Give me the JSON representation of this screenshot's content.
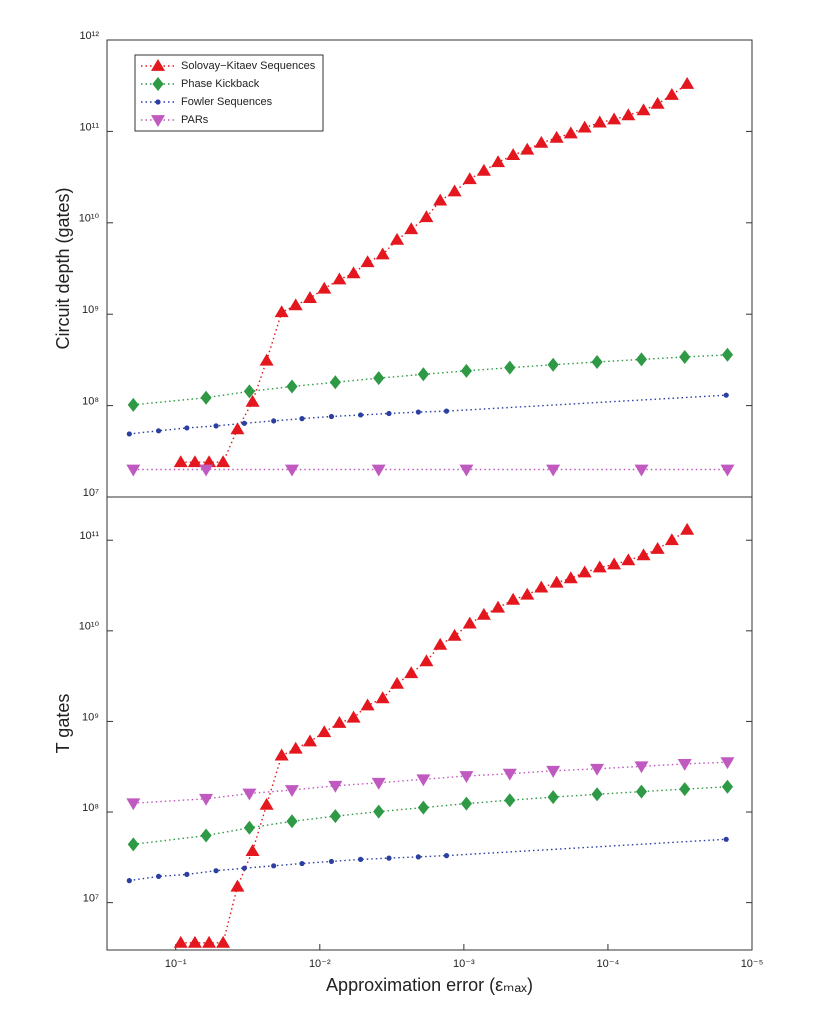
{
  "chart_data": [
    {
      "type": "line",
      "ylabel": "Circuit depth (gates)",
      "log_x": true,
      "log_y": true,
      "legend": "upper left",
      "xlim": [
        0.3,
        1e-05
      ],
      "ylim": [
        10000000,
        1000000000000
      ],
      "yticks": [
        {
          "value": 10000000,
          "label": "10⁷"
        },
        {
          "value": 100000000,
          "label": "10⁸"
        },
        {
          "value": 1000000000,
          "label": "10⁹"
        },
        {
          "value": 10000000000,
          "label": "10¹⁰"
        },
        {
          "value": 100000000000,
          "label": "10¹¹"
        },
        {
          "value": 1000000000000,
          "label": "10¹²"
        }
      ],
      "series": [
        {
          "name": "Solovay−Kitaev Sequences",
          "color": "#e3171d",
          "marker": "^",
          "x": [
            0.0923,
            0.0736,
            0.0587,
            0.0469,
            0.0373,
            0.0293,
            0.0234,
            0.0184,
            0.0147,
            0.0117,
            0.00931,
            0.00731,
            0.00583,
            0.00466,
            0.00366,
            0.00291,
            0.00232,
            0.00182,
            0.00146,
            0.00116,
            0.00091,
            0.000726,
            0.000579,
            0.000455,
            0.000363,
            0.00029,
            0.000227,
            0.000181,
            0.000145,
            0.000114,
            9.06e-05,
            7.22e-05,
            5.66e-05,
            4.52e-05,
            3.6e-05,
            2.82e-05
          ],
          "values": [
            24000000,
            24000000,
            24000000,
            24000000,
            55000000,
            110000000,
            310000000,
            1050000000,
            1250000000,
            1500000000,
            1900000000,
            2400000000,
            2800000000,
            3700000000,
            4500000000,
            6500000000,
            8500000000,
            11500000000,
            17500000000,
            22000000000,
            30000000000,
            37000000000,
            46000000000,
            55000000000,
            63000000000,
            75000000000,
            85000000000,
            95000000000,
            110000000000,
            125000000000,
            135000000000,
            150000000000,
            170000000000,
            200000000000,
            250000000000,
            330000000000
          ]
        },
        {
          "name": "Phase Kickback",
          "color": "#2e9a45",
          "marker": "D",
          "x": [
            0.197,
            0.0616,
            0.0308,
            0.0156,
            0.0078,
            0.0039,
            0.00191,
            0.00096,
            0.00048,
            0.00024,
            0.000119,
            5.85e-05,
            2.93e-05,
            1.48e-05
          ],
          "values": [
            102000000,
            122000000,
            143000000,
            162000000,
            180000000,
            200000000,
            220000000,
            240000000,
            260000000,
            280000000,
            300000000,
            320000000,
            340000000,
            360000000
          ]
        },
        {
          "name": "Fowler Sequences",
          "color": "#2a3fa0",
          "marker": "o",
          "x": [
            0.21,
            0.1315,
            0.0837,
            0.0525,
            0.0334,
            0.0209,
            0.0133,
            0.0083,
            0.00521,
            0.00331,
            0.00207,
            0.00132,
            1.51e-05
          ],
          "values": [
            49000000,
            53000000,
            57000000,
            60000000,
            64000000,
            68000000,
            72000000,
            76000000,
            79000000,
            82000000,
            85000000,
            87000000,
            130000000
          ]
        },
        {
          "name": "PARs",
          "color": "#c05ac0",
          "marker": "v",
          "x": [
            0.197,
            0.0616,
            0.0156,
            0.0039,
            0.00096,
            0.00024,
            5.85e-05,
            1.48e-05
          ],
          "values": [
            20000000,
            20000000,
            20000000,
            20000000,
            20000000,
            20000000,
            20000000,
            20000000
          ]
        }
      ]
    },
    {
      "type": "line",
      "ylabel": "T gates",
      "xlabel": "Approximation error (εₘₐₓ)",
      "log_x": true,
      "log_y": true,
      "xlim": [
        0.3,
        1e-05
      ],
      "ylim": [
        3000000,
        300000000000
      ],
      "xticks": [
        {
          "value": 0.1,
          "label": "10⁻¹"
        },
        {
          "value": 0.01,
          "label": "10⁻²"
        },
        {
          "value": 0.001,
          "label": "10⁻³"
        },
        {
          "value": 0.0001,
          "label": "10⁻⁴"
        },
        {
          "value": 1e-05,
          "label": "10⁻⁵"
        }
      ],
      "yticks": [
        {
          "value": 10000000,
          "label": "10⁷"
        },
        {
          "value": 100000000,
          "label": "10⁸"
        },
        {
          "value": 1000000000,
          "label": "10⁹"
        },
        {
          "value": 10000000000,
          "label": "10¹⁰"
        },
        {
          "value": 100000000000,
          "label": "10¹¹"
        }
      ],
      "series": [
        {
          "color": "#e3171d",
          "marker": "^",
          "x": [
            0.0923,
            0.0736,
            0.0587,
            0.0469,
            0.0373,
            0.0293,
            0.0234,
            0.0184,
            0.0147,
            0.0117,
            0.00931,
            0.00731,
            0.00583,
            0.00466,
            0.00366,
            0.00291,
            0.00232,
            0.00182,
            0.00146,
            0.00116,
            0.00091,
            0.000726,
            0.000579,
            0.000455,
            0.000363,
            0.00029,
            0.000227,
            0.000181,
            0.000145,
            0.000114,
            9.06e-05,
            7.22e-05,
            5.66e-05,
            4.52e-05,
            3.6e-05,
            2.82e-05
          ],
          "values": [
            3600000,
            3600000,
            3600000,
            3600000,
            15000000,
            37000000,
            120000000,
            420000000,
            500000000,
            600000000,
            760000000,
            960000000,
            1100000000,
            1500000000,
            1800000000,
            2600000000,
            3400000000,
            4600000000,
            7000000000,
            8800000000,
            12000000000,
            15000000000,
            18000000000,
            22000000000,
            25000000000,
            30000000000,
            34000000000,
            38000000000,
            44000000000,
            50000000000,
            54000000000,
            60000000000,
            68000000000,
            80000000000,
            100000000000,
            130000000000
          ]
        },
        {
          "color": "#2e9a45",
          "marker": "D",
          "x": [
            0.197,
            0.0616,
            0.0308,
            0.0156,
            0.0078,
            0.0039,
            0.00191,
            0.00096,
            0.00048,
            0.00024,
            0.000119,
            5.85e-05,
            2.93e-05,
            1.48e-05
          ],
          "values": [
            44000000,
            55000000,
            67000000,
            79000000,
            90000000,
            101000000,
            112000000,
            124000000,
            135000000,
            146000000,
            157000000,
            168000000,
            179000000,
            190000000
          ]
        },
        {
          "color": "#2a3fa0",
          "marker": "o",
          "x": [
            0.21,
            0.1315,
            0.0837,
            0.0525,
            0.0334,
            0.0209,
            0.0133,
            0.0083,
            0.00521,
            0.00331,
            0.00207,
            0.00132,
            1.51e-05
          ],
          "values": [
            17500000,
            19500000,
            20500000,
            22500000,
            24000000,
            25500000,
            27000000,
            28500000,
            30000000,
            31000000,
            32000000,
            33000000,
            50000000
          ]
        },
        {
          "color": "#c05ac0",
          "marker": "v",
          "x": [
            0.197,
            0.0616,
            0.0308,
            0.0156,
            0.0078,
            0.0039,
            0.00191,
            0.00096,
            0.00048,
            0.00024,
            0.000119,
            5.85e-05,
            2.93e-05,
            1.48e-05
          ],
          "values": [
            125000000,
            140000000,
            160000000,
            175000000,
            195000000,
            210000000,
            230000000,
            250000000,
            265000000,
            285000000,
            300000000,
            320000000,
            340000000,
            355000000
          ]
        }
      ]
    }
  ]
}
